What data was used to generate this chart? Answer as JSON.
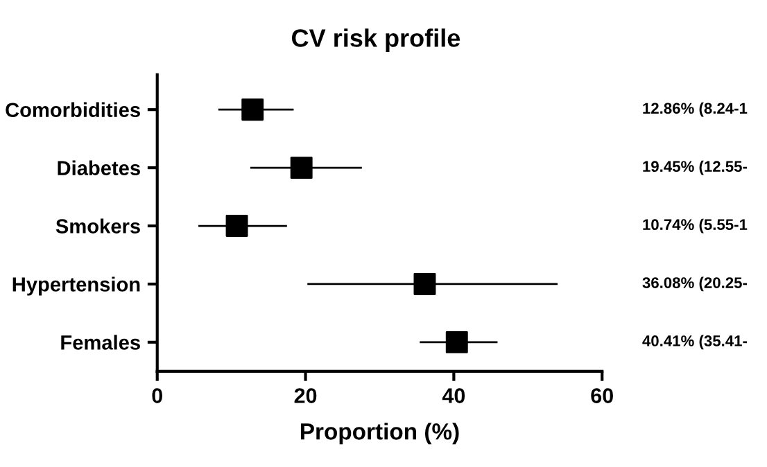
{
  "chart_data": {
    "type": "scatter",
    "orientation": "horizontal",
    "title": "CV risk profile",
    "xlabel": "Proportion (%)",
    "categories": [
      "Comorbidities",
      "Diabetes",
      "Smokers",
      "Hypertension",
      "Females"
    ],
    "series": [
      {
        "color": "#000000",
        "values": [
          12.86,
          19.45,
          10.74,
          36.08,
          40.41
        ],
        "errors": [
          [
            8.24,
            18.4
          ],
          [
            12.55,
            27.6
          ],
          [
            5.55,
            17.5
          ],
          [
            20.25,
            54.0
          ],
          [
            35.41,
            45.9
          ]
        ],
        "value_labels": [
          "12.86% (8.24-1",
          "19.45% (12.55-",
          "10.74% (5.55-1",
          "36.08% (20.25-",
          "40.41% (35.41-"
        ]
      }
    ],
    "xlim": [
      0,
      60
    ],
    "xticks": [
      0,
      20,
      40,
      60
    ],
    "marker": "square",
    "grid": false,
    "legend": false
  }
}
